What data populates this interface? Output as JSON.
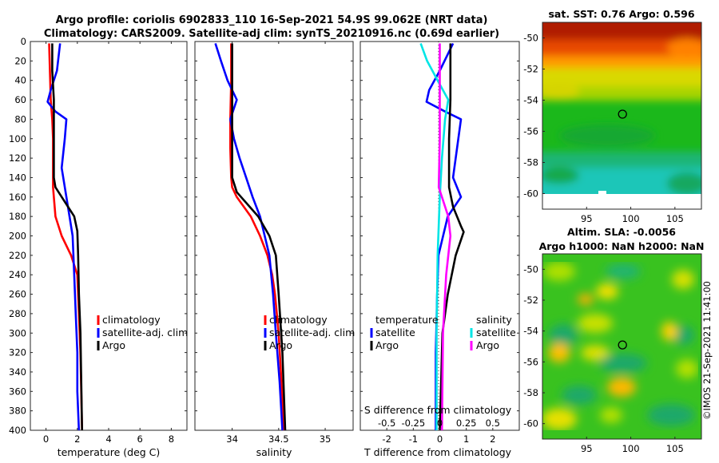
{
  "figure": {
    "title_line1": "Argo profile: coriolis 6902833_110 16-Sep-2021 54.9S 99.062E (NRT data)",
    "title_line2": "Climatology: CARS2009. Satellite-adj clim: synTS_20210916.nc (0.69d earlier)",
    "watermark": "©IMOS 21-Sep-2021 11:41:00"
  },
  "colors": {
    "climatology": "#ff0000",
    "satellite": "#0000ff",
    "argo": "#000000",
    "salinity_satellite": "#00e5e5",
    "salinity_argo": "#ff00ff"
  },
  "chart_data": [
    {
      "type": "line",
      "name": "temperature-profile",
      "xlabel": "temperature (deg C)",
      "ylabel": "",
      "xlim": [
        -1,
        9
      ],
      "ylim": [
        0,
        400
      ],
      "y_reversed": true,
      "xticks": [
        "0",
        "2",
        "4",
        "6",
        "8"
      ],
      "xtick_values": [
        0,
        2,
        4,
        6,
        8
      ],
      "yticks": [
        "0",
        "20",
        "40",
        "60",
        "80",
        "100",
        "120",
        "140",
        "160",
        "180",
        "200",
        "220",
        "240",
        "260",
        "280",
        "300",
        "320",
        "340",
        "360",
        "380",
        "400"
      ],
      "ytick_values": [
        0,
        20,
        40,
        60,
        80,
        100,
        120,
        140,
        160,
        180,
        200,
        220,
        240,
        260,
        280,
        300,
        320,
        340,
        360,
        380,
        400
      ],
      "legend": [
        "climatology",
        "satellite-adj. clim",
        "Argo"
      ],
      "legend_position": "lower-right",
      "series": [
        {
          "name": "climatology",
          "x": [
            0.2,
            0.3,
            0.4,
            0.45,
            0.45,
            0.45,
            0.5,
            0.6,
            1.0,
            1.6,
            2.0,
            2.1,
            2.2,
            2.25,
            2.3
          ],
          "y": [
            2,
            60,
            80,
            100,
            130,
            150,
            160,
            180,
            200,
            220,
            240,
            280,
            320,
            360,
            400
          ]
        },
        {
          "name": "satellite-adj. clim",
          "x": [
            0.9,
            0.7,
            0.3,
            0.1,
            0.6,
            1.3,
            1.2,
            1.0,
            1.3,
            1.5,
            1.7,
            1.8,
            1.9,
            2.0,
            2.0,
            2.1
          ],
          "y": [
            2,
            30,
            50,
            62,
            72,
            80,
            100,
            130,
            160,
            180,
            200,
            240,
            280,
            320,
            360,
            400
          ]
        },
        {
          "name": "Argo",
          "x": [
            0.4,
            0.4,
            0.5,
            0.5,
            0.5,
            0.6,
            1.8,
            2.0,
            2.05,
            2.1,
            2.2,
            2.25,
            2.3
          ],
          "y": [
            2,
            30,
            60,
            100,
            140,
            150,
            180,
            195,
            220,
            260,
            300,
            350,
            400
          ]
        }
      ]
    },
    {
      "type": "line",
      "name": "salinity-profile",
      "xlabel": "salinity",
      "ylabel": "",
      "xlim": [
        33.6,
        35.3
      ],
      "ylim": [
        0,
        400
      ],
      "y_reversed": true,
      "xticks": [
        "34",
        "34.5",
        "35"
      ],
      "xtick_values": [
        34,
        34.5,
        35
      ],
      "legend": [
        "climatology",
        "satellite-adj. clim",
        "Argo"
      ],
      "legend_position": "lower-right",
      "series": [
        {
          "name": "climatology",
          "x": [
            33.99,
            33.99,
            33.98,
            33.98,
            33.99,
            34.0,
            34.05,
            34.2,
            34.3,
            34.38,
            34.43,
            34.46,
            34.5,
            34.53,
            34.56
          ],
          "y": [
            2,
            40,
            80,
            110,
            140,
            150,
            160,
            180,
            200,
            220,
            240,
            260,
            300,
            350,
            400
          ]
        },
        {
          "name": "satellite-adj. clim",
          "x": [
            33.82,
            33.88,
            33.95,
            34.05,
            33.98,
            34.02,
            34.08,
            34.15,
            34.22,
            34.3,
            34.4,
            34.44,
            34.47,
            34.51,
            34.54
          ],
          "y": [
            2,
            20,
            40,
            60,
            80,
            100,
            120,
            140,
            160,
            180,
            220,
            260,
            300,
            350,
            400
          ]
        },
        {
          "name": "Argo",
          "x": [
            34.0,
            34.0,
            34.0,
            34.0,
            34.0,
            34.05,
            34.28,
            34.4,
            34.47,
            34.5,
            34.54,
            34.57
          ],
          "y": [
            2,
            40,
            80,
            110,
            140,
            155,
            180,
            200,
            220,
            260,
            320,
            400
          ]
        }
      ]
    },
    {
      "type": "line",
      "name": "difference-profile",
      "xlabel": "T difference from climatology",
      "top_axis_label": "S difference from climatology",
      "xlim": [
        -3,
        3
      ],
      "ylim": [
        0,
        400
      ],
      "y_reversed": true,
      "xticks": [
        "-2",
        "-1",
        "0",
        "1",
        "2"
      ],
      "xtick_values": [
        -2,
        -1,
        0,
        1,
        2
      ],
      "top_xticks": [
        "-0.5",
        "-0.25",
        "0",
        "0.25",
        "0.5"
      ],
      "top_xtick_values": [
        -0.5,
        -0.25,
        0,
        0.25,
        0.5
      ],
      "zero_line": true,
      "legend_temperature_title": "temperature",
      "legend_salinity_title": "salinity",
      "legend_temperature": [
        "satellite",
        "Argo"
      ],
      "legend_salinity": [
        "satellite",
        "Argo"
      ],
      "legend_position": "lower-center",
      "series": [
        {
          "name": "temperature satellite",
          "axis": "T",
          "x": [
            0.5,
            0.0,
            -0.4,
            -0.5,
            0.2,
            0.8,
            0.7,
            0.5,
            0.8,
            0.3,
            -0.05,
            -0.1,
            -0.15,
            -0.15
          ],
          "y": [
            2,
            30,
            50,
            62,
            72,
            80,
            100,
            140,
            160,
            180,
            220,
            260,
            320,
            400
          ]
        },
        {
          "name": "temperature Argo",
          "axis": "T",
          "x": [
            0.4,
            0.4,
            0.35,
            0.35,
            0.5,
            0.8,
            0.9,
            0.6,
            0.3,
            0.1,
            0.05,
            0.0
          ],
          "y": [
            2,
            60,
            100,
            150,
            170,
            190,
            196,
            220,
            260,
            300,
            350,
            400
          ]
        },
        {
          "name": "salinity satellite",
          "axis": "S",
          "x": [
            -0.18,
            -0.12,
            -0.02,
            0.08,
            0.05,
            0.02,
            0.0,
            -0.02,
            -0.03,
            -0.03
          ],
          "y": [
            2,
            20,
            40,
            60,
            80,
            120,
            160,
            220,
            300,
            400
          ]
        },
        {
          "name": "salinity Argo",
          "axis": "S",
          "x": [
            0.0,
            0.0,
            0.0,
            -0.01,
            0.08,
            0.1,
            0.06,
            0.03,
            0.02
          ],
          "y": [
            2,
            60,
            100,
            150,
            180,
            200,
            240,
            300,
            400
          ]
        }
      ]
    },
    {
      "type": "heatmap",
      "name": "sst-map",
      "title": "sat. SST: 0.76 Argo: 0.596",
      "xlim": [
        90,
        108
      ],
      "ylim": [
        -61,
        -49
      ],
      "xticks": [
        "95",
        "100",
        "105"
      ],
      "xtick_values": [
        95,
        100,
        105
      ],
      "yticks": [
        "-50",
        "-52",
        "-54",
        "-56",
        "-58",
        "-60"
      ],
      "ytick_values": [
        -50,
        -52,
        -54,
        -56,
        -58,
        -60
      ],
      "marker": {
        "lon": 99.062,
        "lat": -54.9
      },
      "colormap": "jet"
    },
    {
      "type": "heatmap",
      "name": "sla-map",
      "title_line1": "Altim. SLA: -0.0056",
      "title_line2": "Argo h1000: NaN h2000: NaN",
      "xlim": [
        90,
        108
      ],
      "ylim": [
        -61,
        -49
      ],
      "xticks": [
        "95",
        "100",
        "105"
      ],
      "xtick_values": [
        95,
        100,
        105
      ],
      "yticks": [
        "-50",
        "-52",
        "-54",
        "-56",
        "-58",
        "-60"
      ],
      "ytick_values": [
        -50,
        -52,
        -54,
        -56,
        -58,
        -60
      ],
      "marker": {
        "lon": 99.062,
        "lat": -54.9
      },
      "colormap": "jet"
    }
  ]
}
